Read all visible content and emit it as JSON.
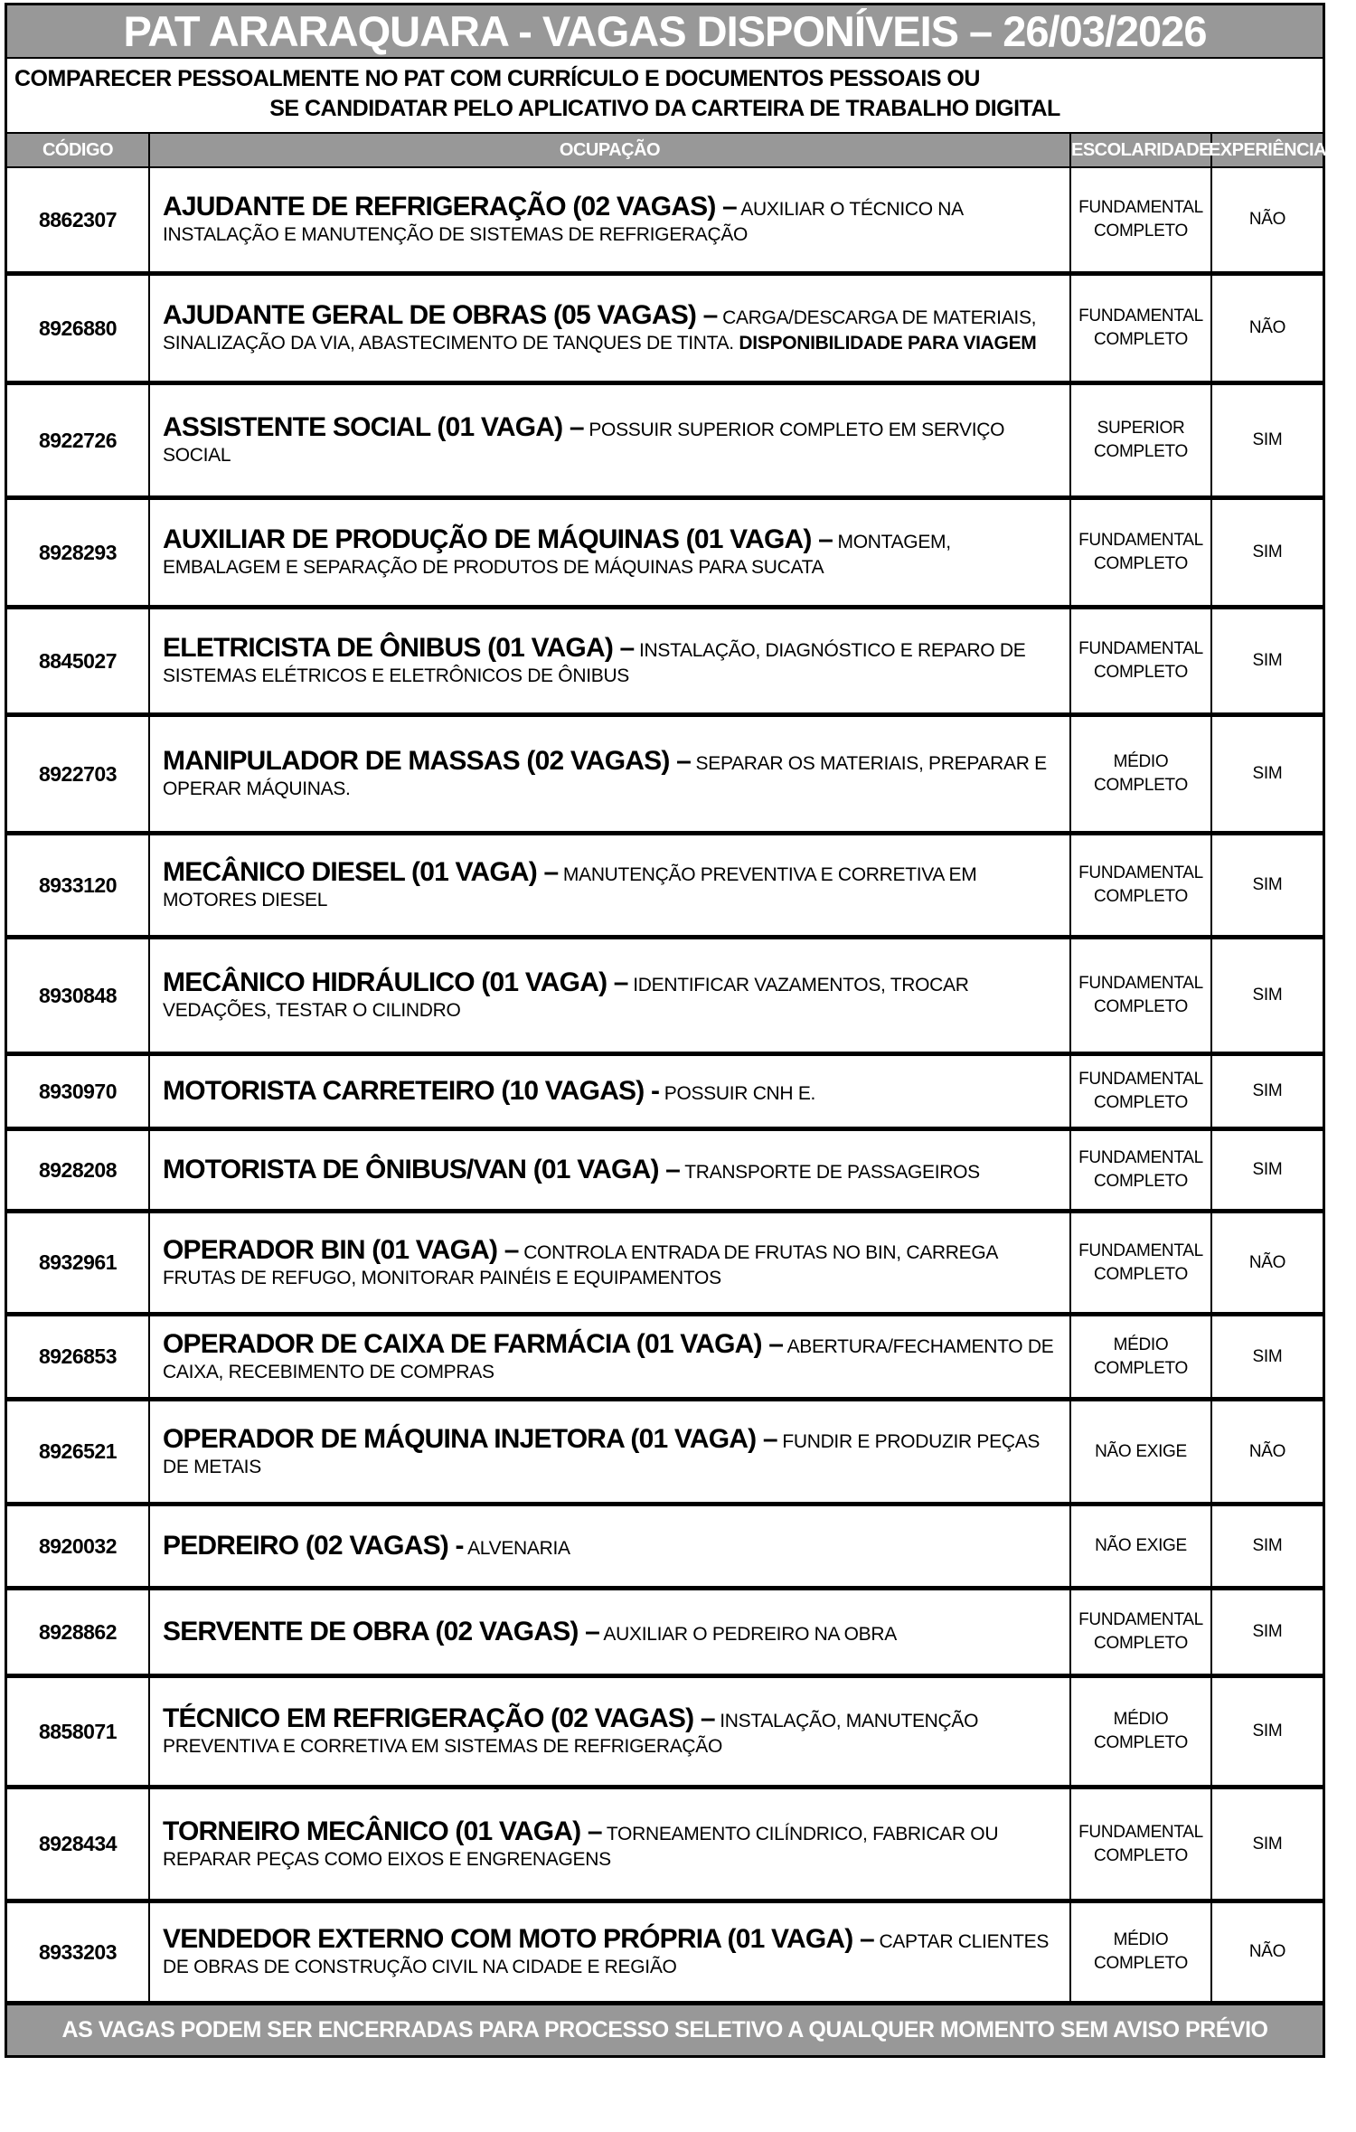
{
  "title": "PAT ARARAQUARA - VAGAS DISPONÍVEIS – 26/03/2026",
  "instructions": {
    "line1": "COMPARECER PESSOALMENTE NO PAT COM CURRÍCULO E DOCUMENTOS PESSOAIS OU",
    "line2": "SE CANDIDATAR PELO APLICATIVO DA CARTEIRA DE TRABALHO DIGITAL"
  },
  "columns": {
    "codigo": "CÓDIGO",
    "ocupacao": "OCUPAÇÃO",
    "escolaridade": "ESCOLARIDADE",
    "experiencia": "EXPERIÊNCIA"
  },
  "rows": [
    {
      "code": "8862307",
      "title": "AJUDANTE DE REFRIGERAÇÃO (02 VAGAS) –",
      "desc": "AUXILIAR O TÉCNICO NA INSTALAÇÃO E MANUTENÇÃO DE SISTEMAS DE REFRIGERAÇÃO",
      "escolaridade": "FUNDAMENTAL COMPLETO",
      "experiencia": "NÃO"
    },
    {
      "code": "8926880",
      "title": "AJUDANTE GERAL DE OBRAS (05 VAGAS) –",
      "desc": "CARGA/DESCARGA DE MATERIAIS,  SINALIZAÇÃO DA VIA, ABASTECIMENTO DE TANQUES DE TINTA.",
      "desc_bold": "DISPONIBILIDADE PARA VIAGEM",
      "escolaridade": "FUNDAMENTAL COMPLETO",
      "experiencia": "NÃO"
    },
    {
      "code": "8922726",
      "title": "ASSISTENTE SOCIAL (01 VAGA) –",
      "desc": "POSSUIR SUPERIOR COMPLETO EM SERVIÇO SOCIAL",
      "escolaridade": "SUPERIOR COMPLETO",
      "experiencia": "SIM"
    },
    {
      "code": "8928293",
      "title": "AUXILIAR DE PRODUÇÃO DE MÁQUINAS (01 VAGA) –",
      "desc": "MONTAGEM, EMBALAGEM E SEPARAÇÃO DE PRODUTOS DE MÁQUINAS PARA SUCATA",
      "escolaridade": "FUNDAMENTAL COMPLETO",
      "experiencia": "SIM"
    },
    {
      "code": "8845027",
      "title": "ELETRICISTA DE ÔNIBUS (01 VAGA) –",
      "desc": "INSTALAÇÃO, DIAGNÓSTICO E REPARO DE SISTEMAS ELÉTRICOS E ELETRÔNICOS DE ÔNIBUS",
      "escolaridade": "FUNDAMENTAL COMPLETO",
      "experiencia": "SIM"
    },
    {
      "code": "8922703",
      "title": "MANIPULADOR DE MASSAS (02 VAGAS) –",
      "desc": "SEPARAR OS MATERIAIS, PREPARAR E OPERAR MÁQUINAS.",
      "escolaridade": "MÉDIO COMPLETO",
      "experiencia": "SIM"
    },
    {
      "code": "8933120",
      "title": "MECÂNICO DIESEL (01 VAGA) –",
      "desc": "MANUTENÇÃO PREVENTIVA E CORRETIVA EM MOTORES DIESEL",
      "escolaridade": "FUNDAMENTAL COMPLETO",
      "experiencia": "SIM"
    },
    {
      "code": "8930848",
      "title": "MECÂNICO HIDRÁULICO (01 VAGA) –",
      "desc": "IDENTIFICAR VAZAMENTOS, TROCAR VEDAÇÕES, TESTAR O CILINDRO",
      "escolaridade": "FUNDAMENTAL COMPLETO",
      "experiencia": "SIM"
    },
    {
      "code": "8930970",
      "title": "MOTORISTA CARRETEIRO (10 VAGAS) -",
      "desc": "POSSUIR CNH E.",
      "escolaridade": "FUNDAMENTAL COMPLETO",
      "experiencia": "SIM"
    },
    {
      "code": "8928208",
      "title": "MOTORISTA DE ÔNIBUS/VAN (01 VAGA) –",
      "desc": "TRANSPORTE DE PASSAGEIROS",
      "escolaridade": "FUNDAMENTAL COMPLETO",
      "experiencia": "SIM"
    },
    {
      "code": "8932961",
      "title": "OPERADOR BIN (01 VAGA) –",
      "desc": "CONTROLA ENTRADA DE FRUTAS NO BIN, CARREGA FRUTAS DE REFUGO, MONITORAR PAINÉIS E EQUIPAMENTOS",
      "escolaridade": "FUNDAMENTAL COMPLETO",
      "experiencia": "NÃO"
    },
    {
      "code": "8926853",
      "title": "OPERADOR DE CAIXA DE FARMÁCIA (01 VAGA) –",
      "desc": "ABERTURA/FECHAMENTO DE CAIXA, RECEBIMENTO DE COMPRAS",
      "escolaridade": "MÉDIO COMPLETO",
      "experiencia": "SIM"
    },
    {
      "code": "8926521",
      "title": "OPERADOR DE MÁQUINA INJETORA (01 VAGA) –",
      "desc": "FUNDIR E PRODUZIR PEÇAS DE METAIS",
      "escolaridade": "NÃO EXIGE",
      "experiencia": "NÃO"
    },
    {
      "code": "8920032",
      "title": "PEDREIRO (02 VAGAS) -",
      "desc": "ALVENARIA",
      "escolaridade": "NÃO EXIGE",
      "experiencia": "SIM"
    },
    {
      "code": "8928862",
      "title": "SERVENTE DE OBRA (02 VAGAS) –",
      "desc": "AUXILIAR O PEDREIRO NA OBRA",
      "escolaridade": "FUNDAMENTAL COMPLETO",
      "experiencia": "SIM"
    },
    {
      "code": "8858071",
      "title": "TÉCNICO EM REFRIGERAÇÃO (02 VAGAS) –",
      "desc": "INSTALAÇÃO, MANUTENÇÃO PREVENTIVA E CORRETIVA EM SISTEMAS DE REFRIGERAÇÃO",
      "escolaridade": "MÉDIO COMPLETO",
      "experiencia": "SIM"
    },
    {
      "code": "8928434",
      "title": "TORNEIRO MECÂNICO (01 VAGA) –",
      "desc": "TORNEAMENTO CILÍNDRICO, FABRICAR OU REPARAR PEÇAS COMO EIXOS E ENGRENAGENS",
      "escolaridade": "FUNDAMENTAL COMPLETO",
      "experiencia": "SIM"
    },
    {
      "code": "8933203",
      "title": "VENDEDOR EXTERNO COM MOTO PRÓPRIA (01 VAGA) –",
      "desc": "CAPTAR CLIENTES DE OBRAS DE CONSTRUÇÃO CIVIL NA CIDADE E REGIÃO",
      "escolaridade": "MÉDIO COMPLETO",
      "experiencia": "NÃO"
    }
  ],
  "footer": "AS VAGAS PODEM SER ENCERRADAS PARA PROCESSO SELETIVO A QUALQUER MOMENTO SEM AVISO PRÉVIO",
  "colors": {
    "bar_gray": "#989898",
    "border_black": "#000000",
    "bar_text": "#ffffff"
  }
}
